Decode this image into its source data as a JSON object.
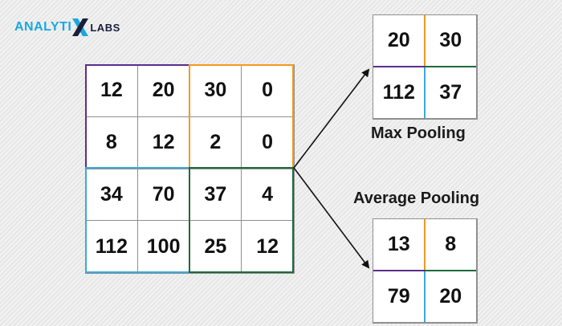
{
  "logo": {
    "text_left": "ANALYTI",
    "text_right": "LABS",
    "brand_color": "#1ba7e0",
    "dark_color": "#1b1f3b"
  },
  "colors": {
    "purple": "#5b2d8e",
    "orange": "#f39a1e",
    "blue": "#3aa9dd",
    "green": "#1d6b3a"
  },
  "input_matrix": [
    [
      "12",
      "20",
      "30",
      "0"
    ],
    [
      "8",
      "12",
      "2",
      "0"
    ],
    [
      "34",
      "70",
      "37",
      "4"
    ],
    [
      "112",
      "100",
      "25",
      "12"
    ]
  ],
  "max_pooling": {
    "label": "Max Pooling",
    "values": [
      [
        "20",
        "30"
      ],
      [
        "112",
        "37"
      ]
    ]
  },
  "average_pooling": {
    "label": "Average Pooling",
    "values": [
      [
        "13",
        "8"
      ],
      [
        "79",
        "20"
      ]
    ]
  }
}
